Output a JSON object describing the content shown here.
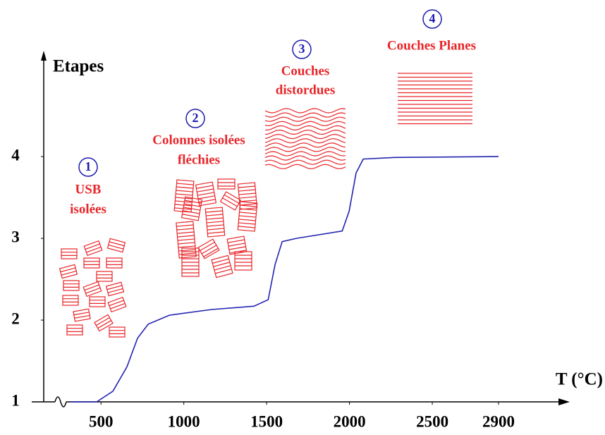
{
  "chart_data": {
    "type": "line",
    "x_label": "T (°C)",
    "y_label": "Etapes",
    "x": [
      317,
      474,
      572,
      657,
      721,
      785,
      913,
      1168,
      1423,
      1509,
      1551,
      1594,
      1679,
      1956,
      1998,
      2040,
      2083,
      2274,
      2900
    ],
    "series": [
      {
        "color": "#2323b0",
        "values": [
          1,
          1,
          1.13,
          1.43,
          1.78,
          1.95,
          2.06,
          2.13,
          2.17,
          2.25,
          2.68,
          2.96,
          3.0,
          3.09,
          3.33,
          3.8,
          3.97,
          3.99,
          4.0
        ]
      }
    ],
    "xlim": [
      150,
      3300
    ],
    "xticks": [
      500,
      1000,
      1500,
      2000,
      2500,
      2900
    ],
    "ylim": [
      1,
      5.2
    ],
    "yticks": [
      1,
      2,
      3,
      4
    ],
    "annotation_color": "#e8262a",
    "number_color": "#1a1ab0",
    "annotations": [
      {
        "number": "1",
        "label": [
          "USB",
          "isolées"
        ]
      },
      {
        "number": "2",
        "label": [
          "Colonnes isolées",
          "fléchies"
        ]
      },
      {
        "number": "3",
        "label": [
          "Couches",
          "distordues"
        ]
      },
      {
        "number": "4",
        "label": [
          "Couches Planes"
        ]
      }
    ]
  }
}
